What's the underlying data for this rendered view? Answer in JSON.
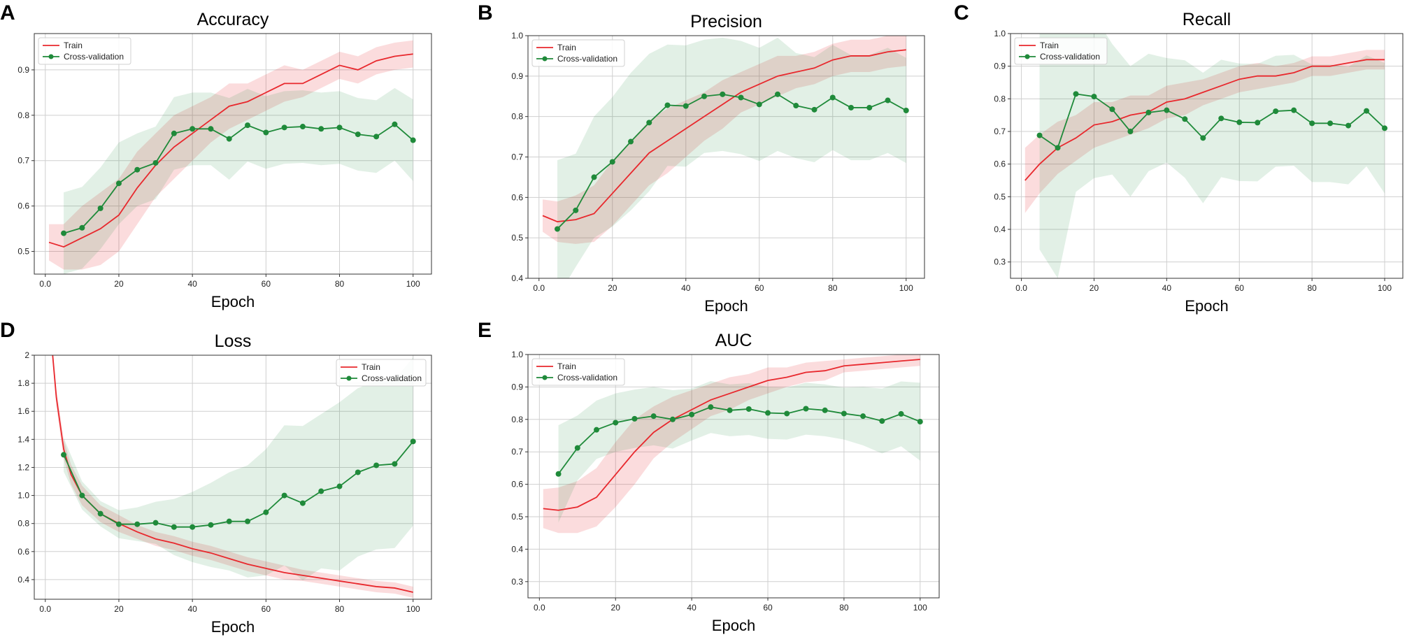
{
  "chart_data": [
    {
      "panel": "A",
      "type": "line",
      "title": "Accuracy",
      "xlabel": "Epoch",
      "ylabel": "",
      "xlim": [
        -3,
        105
      ],
      "ylim": [
        0.45,
        0.98
      ],
      "xticks": [
        0,
        20,
        40,
        60,
        80,
        100
      ],
      "yticks": [
        0.5,
        0.6,
        0.7,
        0.8,
        0.9
      ],
      "grid": true,
      "legend": "top-left",
      "series": [
        {
          "name": "Train",
          "color": "#e8282d",
          "markers": false,
          "x": [
            1,
            5,
            10,
            15,
            20,
            25,
            30,
            35,
            40,
            45,
            50,
            55,
            60,
            65,
            70,
            75,
            80,
            85,
            90,
            95,
            100
          ],
          "values": [
            0.52,
            0.51,
            0.53,
            0.55,
            0.58,
            0.64,
            0.69,
            0.73,
            0.76,
            0.79,
            0.82,
            0.83,
            0.85,
            0.87,
            0.87,
            0.89,
            0.91,
            0.9,
            0.92,
            0.93,
            0.935
          ],
          "band": [
            0.04,
            0.05,
            0.07,
            0.08,
            0.08,
            0.08,
            0.07,
            0.07,
            0.06,
            0.05,
            0.05,
            0.04,
            0.04,
            0.04,
            0.03,
            0.03,
            0.03,
            0.03,
            0.03,
            0.03,
            0.03
          ]
        },
        {
          "name": "Cross-validation",
          "color": "#1f8a3a",
          "markers": true,
          "x": [
            5,
            10,
            15,
            20,
            25,
            30,
            35,
            40,
            45,
            50,
            55,
            60,
            65,
            70,
            75,
            80,
            85,
            90,
            95,
            100
          ],
          "values": [
            0.54,
            0.552,
            0.595,
            0.65,
            0.68,
            0.695,
            0.76,
            0.77,
            0.77,
            0.748,
            0.778,
            0.762,
            0.773,
            0.775,
            0.77,
            0.773,
            0.758,
            0.753,
            0.78,
            0.745
          ],
          "band": [
            0.09,
            0.09,
            0.09,
            0.09,
            0.08,
            0.08,
            0.08,
            0.08,
            0.08,
            0.09,
            0.08,
            0.08,
            0.08,
            0.08,
            0.08,
            0.08,
            0.08,
            0.08,
            0.08,
            0.09
          ]
        }
      ]
    },
    {
      "panel": "B",
      "type": "line",
      "title": "Precision",
      "xlabel": "Epoch",
      "ylabel": "",
      "xlim": [
        -3,
        105
      ],
      "ylim": [
        0.4,
        1.0
      ],
      "xticks": [
        0,
        20,
        40,
        60,
        80,
        100
      ],
      "yticks": [
        0.4,
        0.5,
        0.6,
        0.7,
        0.8,
        0.9,
        1.0
      ],
      "grid": true,
      "legend": "top-left",
      "series": [
        {
          "name": "Train",
          "color": "#e8282d",
          "markers": false,
          "x": [
            1,
            5,
            10,
            15,
            20,
            25,
            30,
            35,
            40,
            45,
            50,
            55,
            60,
            65,
            70,
            75,
            80,
            85,
            90,
            95,
            100
          ],
          "values": [
            0.555,
            0.54,
            0.545,
            0.56,
            0.61,
            0.66,
            0.71,
            0.74,
            0.77,
            0.8,
            0.83,
            0.86,
            0.88,
            0.9,
            0.91,
            0.92,
            0.94,
            0.95,
            0.95,
            0.96,
            0.965
          ],
          "band": [
            0.04,
            0.05,
            0.06,
            0.07,
            0.08,
            0.08,
            0.08,
            0.08,
            0.07,
            0.06,
            0.06,
            0.05,
            0.05,
            0.05,
            0.04,
            0.04,
            0.04,
            0.04,
            0.04,
            0.04,
            0.04
          ]
        },
        {
          "name": "Cross-validation",
          "color": "#1f8a3a",
          "markers": true,
          "x": [
            5,
            10,
            15,
            20,
            25,
            30,
            35,
            40,
            45,
            50,
            55,
            60,
            65,
            70,
            75,
            80,
            85,
            90,
            95,
            100
          ],
          "values": [
            0.522,
            0.568,
            0.65,
            0.688,
            0.738,
            0.785,
            0.828,
            0.826,
            0.85,
            0.855,
            0.847,
            0.83,
            0.855,
            0.827,
            0.817,
            0.847,
            0.822,
            0.822,
            0.84,
            0.815
          ],
          "band": [
            0.17,
            0.14,
            0.15,
            0.16,
            0.17,
            0.17,
            0.15,
            0.15,
            0.14,
            0.14,
            0.14,
            0.14,
            0.14,
            0.13,
            0.13,
            0.13,
            0.13,
            0.13,
            0.13,
            0.13
          ]
        }
      ]
    },
    {
      "panel": "C",
      "type": "line",
      "title": "Recall",
      "xlabel": "Epoch",
      "ylabel": "",
      "xlim": [
        -3,
        105
      ],
      "ylim": [
        0.25,
        1.0
      ],
      "xticks": [
        0,
        20,
        40,
        60,
        80,
        100
      ],
      "yticks": [
        0.3,
        0.4,
        0.5,
        0.6,
        0.7,
        0.8,
        0.9,
        1.0
      ],
      "grid": true,
      "legend": "top-left",
      "series": [
        {
          "name": "Train",
          "color": "#e8282d",
          "markers": false,
          "x": [
            1,
            5,
            10,
            15,
            20,
            25,
            30,
            35,
            40,
            45,
            50,
            55,
            60,
            65,
            70,
            75,
            80,
            85,
            90,
            95,
            100
          ],
          "values": [
            0.55,
            0.6,
            0.65,
            0.68,
            0.72,
            0.73,
            0.75,
            0.76,
            0.79,
            0.8,
            0.82,
            0.84,
            0.86,
            0.87,
            0.87,
            0.88,
            0.9,
            0.9,
            0.91,
            0.92,
            0.92
          ],
          "band": [
            0.1,
            0.09,
            0.08,
            0.07,
            0.07,
            0.06,
            0.06,
            0.05,
            0.05,
            0.05,
            0.04,
            0.04,
            0.04,
            0.04,
            0.03,
            0.03,
            0.03,
            0.03,
            0.03,
            0.03,
            0.03
          ]
        },
        {
          "name": "Cross-validation",
          "color": "#1f8a3a",
          "markers": true,
          "x": [
            5,
            10,
            15,
            20,
            25,
            30,
            35,
            40,
            45,
            50,
            55,
            60,
            65,
            70,
            75,
            80,
            85,
            90,
            95,
            100
          ],
          "values": [
            0.688,
            0.65,
            0.815,
            0.807,
            0.768,
            0.7,
            0.758,
            0.765,
            0.738,
            0.68,
            0.74,
            0.728,
            0.727,
            0.762,
            0.765,
            0.725,
            0.725,
            0.718,
            0.763,
            0.71
          ],
          "band": [
            0.35,
            0.4,
            0.3,
            0.25,
            0.2,
            0.2,
            0.18,
            0.16,
            0.18,
            0.2,
            0.18,
            0.18,
            0.18,
            0.17,
            0.17,
            0.18,
            0.18,
            0.18,
            0.17,
            0.2
          ]
        }
      ]
    },
    {
      "panel": "D",
      "type": "line",
      "title": "Loss",
      "xlabel": "Epoch",
      "ylabel": "",
      "xlim": [
        -3,
        105
      ],
      "ylim": [
        0.26,
        2.0
      ],
      "xticks": [
        0,
        20,
        40,
        60,
        80,
        100
      ],
      "yticks": [
        0.4,
        0.6,
        0.8,
        1.0,
        1.2,
        1.4,
        1.6,
        1.8,
        2.0
      ],
      "grid": true,
      "legend": "top-right",
      "series": [
        {
          "name": "Train",
          "color": "#e8282d",
          "markers": false,
          "x": [
            2,
            3,
            5,
            7,
            10,
            15,
            20,
            25,
            30,
            35,
            40,
            45,
            50,
            55,
            60,
            65,
            70,
            75,
            80,
            85,
            90,
            95,
            100
          ],
          "values": [
            2.0,
            1.7,
            1.33,
            1.15,
            1.0,
            0.87,
            0.8,
            0.74,
            0.69,
            0.66,
            0.62,
            0.59,
            0.55,
            0.51,
            0.48,
            0.45,
            0.43,
            0.41,
            0.39,
            0.37,
            0.35,
            0.34,
            0.31
          ],
          "band": [
            0.05,
            0.06,
            0.07,
            0.07,
            0.07,
            0.06,
            0.06,
            0.05,
            0.05,
            0.05,
            0.05,
            0.05,
            0.05,
            0.05,
            0.05,
            0.05,
            0.04,
            0.04,
            0.04,
            0.04,
            0.04,
            0.04,
            0.04
          ]
        },
        {
          "name": "Cross-validation",
          "color": "#1f8a3a",
          "markers": true,
          "x": [
            5,
            10,
            15,
            20,
            25,
            30,
            35,
            40,
            45,
            50,
            55,
            60,
            65,
            70,
            75,
            80,
            85,
            90,
            95,
            100
          ],
          "values": [
            1.29,
            1.0,
            0.87,
            0.795,
            0.795,
            0.805,
            0.775,
            0.775,
            0.79,
            0.815,
            0.815,
            0.88,
            1.0,
            0.945,
            1.03,
            1.065,
            1.165,
            1.215,
            1.225,
            1.385
          ],
          "band": [
            0.12,
            0.1,
            0.09,
            0.1,
            0.12,
            0.15,
            0.2,
            0.25,
            0.3,
            0.35,
            0.4,
            0.45,
            0.5,
            0.55,
            0.55,
            0.6,
            0.6,
            0.6,
            0.6,
            0.6
          ]
        }
      ]
    },
    {
      "panel": "E",
      "type": "line",
      "title": "AUC",
      "xlabel": "Epoch",
      "ylabel": "",
      "xlim": [
        -3,
        105
      ],
      "ylim": [
        0.25,
        1.0
      ],
      "xticks": [
        0,
        20,
        40,
        60,
        80,
        100
      ],
      "yticks": [
        0.3,
        0.4,
        0.5,
        0.6,
        0.7,
        0.8,
        0.9,
        1.0
      ],
      "grid": true,
      "legend": "top-left",
      "series": [
        {
          "name": "Train",
          "color": "#e8282d",
          "markers": false,
          "x": [
            1,
            5,
            10,
            15,
            20,
            25,
            30,
            35,
            40,
            45,
            50,
            55,
            60,
            65,
            70,
            75,
            80,
            85,
            90,
            95,
            100
          ],
          "values": [
            0.525,
            0.52,
            0.53,
            0.56,
            0.63,
            0.7,
            0.76,
            0.8,
            0.83,
            0.86,
            0.88,
            0.9,
            0.92,
            0.93,
            0.945,
            0.95,
            0.965,
            0.97,
            0.975,
            0.98,
            0.985
          ],
          "band": [
            0.06,
            0.07,
            0.08,
            0.09,
            0.1,
            0.1,
            0.08,
            0.07,
            0.06,
            0.05,
            0.05,
            0.04,
            0.04,
            0.03,
            0.03,
            0.03,
            0.02,
            0.02,
            0.02,
            0.02,
            0.02
          ]
        },
        {
          "name": "Cross-validation",
          "color": "#1f8a3a",
          "markers": true,
          "x": [
            5,
            10,
            15,
            20,
            25,
            30,
            35,
            40,
            45,
            50,
            55,
            60,
            65,
            70,
            75,
            80,
            85,
            90,
            95,
            100
          ],
          "values": [
            0.632,
            0.712,
            0.768,
            0.79,
            0.802,
            0.81,
            0.8,
            0.815,
            0.838,
            0.828,
            0.832,
            0.82,
            0.818,
            0.833,
            0.828,
            0.818,
            0.81,
            0.795,
            0.817,
            0.793
          ],
          "band": [
            0.15,
            0.1,
            0.09,
            0.09,
            0.09,
            0.09,
            0.09,
            0.08,
            0.08,
            0.08,
            0.08,
            0.08,
            0.08,
            0.08,
            0.08,
            0.08,
            0.09,
            0.1,
            0.1,
            0.12
          ]
        }
      ]
    }
  ]
}
